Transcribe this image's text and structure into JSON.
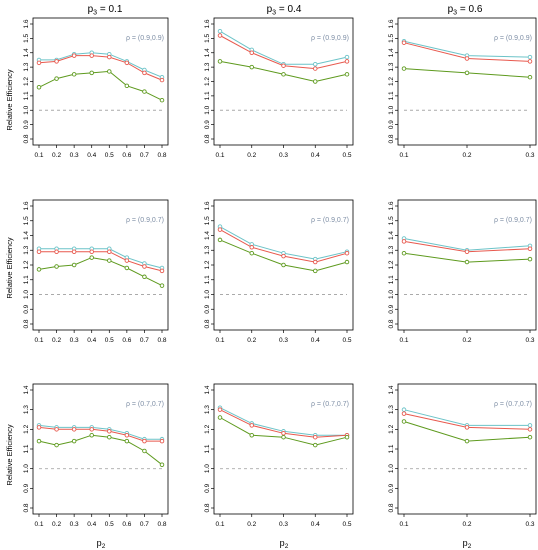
{
  "figure": {
    "column_titles": [
      {
        "base": "p",
        "sub": "3",
        "rest": " = 0.1"
      },
      {
        "base": "p",
        "sub": "3",
        "rest": " = 0.4"
      },
      {
        "base": "p",
        "sub": "3",
        "rest": " = 0.6"
      }
    ],
    "x_label": {
      "base": "p",
      "sub": "2"
    },
    "y_label": "Relative Efficiency",
    "series_colors": [
      "#6cc3c8",
      "#e8594e",
      "#5e9a1e"
    ],
    "reference_line_color": "#aaaaaa"
  },
  "chart_data": [
    {
      "type": "line",
      "row": 0,
      "col": 0,
      "annotation": "ρ = (0.9,0.9)",
      "x": [
        0.1,
        0.2,
        0.3,
        0.4,
        0.5,
        0.6,
        0.7,
        0.8
      ],
      "x_ticks": [
        "0.1",
        "0.2",
        "0.3",
        "0.4",
        "0.5",
        "0.6",
        "0.7",
        "0.8"
      ],
      "ylim": [
        0.8,
        1.6
      ],
      "y_ticks": [
        "0.8",
        "0.9",
        "1.0",
        "1.1",
        "1.2",
        "1.3",
        "1.4",
        "1.5",
        "1.6"
      ],
      "reference_line": 1.0,
      "series": [
        {
          "values": [
            1.35,
            1.35,
            1.39,
            1.4,
            1.39,
            1.34,
            1.28,
            1.23
          ]
        },
        {
          "values": [
            1.33,
            1.34,
            1.38,
            1.38,
            1.37,
            1.33,
            1.26,
            1.21
          ]
        },
        {
          "values": [
            1.16,
            1.22,
            1.25,
            1.26,
            1.27,
            1.17,
            1.13,
            1.07
          ]
        }
      ]
    },
    {
      "type": "line",
      "row": 0,
      "col": 1,
      "annotation": "ρ = (0.9,0.9)",
      "x": [
        0.1,
        0.2,
        0.3,
        0.4,
        0.5
      ],
      "x_ticks": [
        "0.1",
        "0.2",
        "0.3",
        "0.4",
        "0.5"
      ],
      "ylim": [
        0.8,
        1.6
      ],
      "y_ticks": [
        "0.8",
        "0.9",
        "1.0",
        "1.1",
        "1.2",
        "1.3",
        "1.4",
        "1.5",
        "1.6"
      ],
      "reference_line": 1.0,
      "series": [
        {
          "values": [
            1.55,
            1.42,
            1.32,
            1.32,
            1.37
          ]
        },
        {
          "values": [
            1.52,
            1.4,
            1.31,
            1.29,
            1.34
          ]
        },
        {
          "values": [
            1.34,
            1.3,
            1.25,
            1.2,
            1.25
          ]
        }
      ]
    },
    {
      "type": "line",
      "row": 0,
      "col": 2,
      "annotation": "ρ = (0.9,0.9)",
      "x": [
        0.1,
        0.2,
        0.3
      ],
      "x_ticks": [
        "0.1",
        "0.2",
        "0.3"
      ],
      "ylim": [
        0.8,
        1.6
      ],
      "y_ticks": [
        "0.8",
        "0.9",
        "1.0",
        "1.1",
        "1.2",
        "1.3",
        "1.4",
        "1.5",
        "1.6"
      ],
      "reference_line": 1.0,
      "series": [
        {
          "values": [
            1.48,
            1.38,
            1.37
          ]
        },
        {
          "values": [
            1.47,
            1.36,
            1.34
          ]
        },
        {
          "values": [
            1.29,
            1.26,
            1.23
          ]
        }
      ]
    },
    {
      "type": "line",
      "row": 1,
      "col": 0,
      "annotation": "ρ = (0.9,0.7)",
      "x": [
        0.1,
        0.2,
        0.3,
        0.4,
        0.5,
        0.6,
        0.7,
        0.8
      ],
      "x_ticks": [
        "0.1",
        "0.2",
        "0.3",
        "0.4",
        "0.5",
        "0.6",
        "0.7",
        "0.8"
      ],
      "ylim": [
        0.8,
        1.6
      ],
      "y_ticks": [
        "0.8",
        "0.9",
        "1.0",
        "1.1",
        "1.2",
        "1.3",
        "1.4",
        "1.5",
        "1.6"
      ],
      "reference_line": 1.0,
      "series": [
        {
          "values": [
            1.31,
            1.31,
            1.31,
            1.31,
            1.31,
            1.25,
            1.21,
            1.18
          ]
        },
        {
          "values": [
            1.29,
            1.29,
            1.29,
            1.29,
            1.29,
            1.23,
            1.19,
            1.16
          ]
        },
        {
          "values": [
            1.17,
            1.19,
            1.2,
            1.25,
            1.23,
            1.18,
            1.12,
            1.06
          ]
        }
      ]
    },
    {
      "type": "line",
      "row": 1,
      "col": 1,
      "annotation": "ρ = (0.9,0.7)",
      "x": [
        0.1,
        0.2,
        0.3,
        0.4,
        0.5
      ],
      "x_ticks": [
        "0.1",
        "0.2",
        "0.3",
        "0.4",
        "0.5"
      ],
      "ylim": [
        0.8,
        1.6
      ],
      "y_ticks": [
        "0.8",
        "0.9",
        "1.0",
        "1.1",
        "1.2",
        "1.3",
        "1.4",
        "1.5",
        "1.6"
      ],
      "reference_line": 1.0,
      "series": [
        {
          "values": [
            1.46,
            1.34,
            1.28,
            1.24,
            1.29
          ]
        },
        {
          "values": [
            1.44,
            1.32,
            1.26,
            1.22,
            1.28
          ]
        },
        {
          "values": [
            1.37,
            1.28,
            1.2,
            1.16,
            1.22
          ]
        }
      ]
    },
    {
      "type": "line",
      "row": 1,
      "col": 2,
      "annotation": "ρ = (0.9,0.7)",
      "x": [
        0.1,
        0.2,
        0.3
      ],
      "x_ticks": [
        "0.1",
        "0.2",
        "0.3"
      ],
      "ylim": [
        0.8,
        1.6
      ],
      "y_ticks": [
        "0.8",
        "0.9",
        "1.0",
        "1.1",
        "1.2",
        "1.3",
        "1.4",
        "1.5",
        "1.6"
      ],
      "reference_line": 1.0,
      "series": [
        {
          "values": [
            1.38,
            1.3,
            1.33
          ]
        },
        {
          "values": [
            1.36,
            1.29,
            1.31
          ]
        },
        {
          "values": [
            1.28,
            1.22,
            1.24
          ]
        }
      ]
    },
    {
      "type": "line",
      "row": 2,
      "col": 0,
      "annotation": "ρ = (0.7,0.7)",
      "x": [
        0.1,
        0.2,
        0.3,
        0.4,
        0.5,
        0.6,
        0.7,
        0.8
      ],
      "x_ticks": [
        "0.1",
        "0.2",
        "0.3",
        "0.4",
        "0.5",
        "0.6",
        "0.7",
        "0.8"
      ],
      "ylim": [
        0.8,
        1.4
      ],
      "y_ticks": [
        "0.8",
        "0.9",
        "1.0",
        "1.1",
        "1.2",
        "1.3",
        "1.4"
      ],
      "reference_line": 1.0,
      "series": [
        {
          "values": [
            1.22,
            1.21,
            1.21,
            1.21,
            1.2,
            1.18,
            1.15,
            1.15
          ]
        },
        {
          "values": [
            1.21,
            1.2,
            1.2,
            1.2,
            1.19,
            1.17,
            1.14,
            1.14
          ]
        },
        {
          "values": [
            1.14,
            1.12,
            1.14,
            1.17,
            1.16,
            1.14,
            1.09,
            1.02
          ]
        }
      ]
    },
    {
      "type": "line",
      "row": 2,
      "col": 1,
      "annotation": "ρ = (0.7,0.7)",
      "x": [
        0.1,
        0.2,
        0.3,
        0.4,
        0.5
      ],
      "x_ticks": [
        "0.1",
        "0.2",
        "0.3",
        "0.4",
        "0.5"
      ],
      "ylim": [
        0.8,
        1.4
      ],
      "y_ticks": [
        "0.8",
        "0.9",
        "1.0",
        "1.1",
        "1.2",
        "1.3",
        "1.4"
      ],
      "reference_line": 1.0,
      "series": [
        {
          "values": [
            1.31,
            1.23,
            1.19,
            1.17,
            1.17
          ]
        },
        {
          "values": [
            1.3,
            1.22,
            1.18,
            1.16,
            1.17
          ]
        },
        {
          "values": [
            1.26,
            1.17,
            1.16,
            1.12,
            1.16
          ]
        }
      ]
    },
    {
      "type": "line",
      "row": 2,
      "col": 2,
      "annotation": "ρ = (0.7,0.7)",
      "x": [
        0.1,
        0.2,
        0.3
      ],
      "x_ticks": [
        "0.1",
        "0.2",
        "0.3"
      ],
      "ylim": [
        0.8,
        1.4
      ],
      "y_ticks": [
        "0.8",
        "0.9",
        "1.0",
        "1.1",
        "1.2",
        "1.3",
        "1.4"
      ],
      "reference_line": 1.0,
      "series": [
        {
          "values": [
            1.3,
            1.22,
            1.22
          ]
        },
        {
          "values": [
            1.28,
            1.21,
            1.2
          ]
        },
        {
          "values": [
            1.24,
            1.14,
            1.16
          ]
        }
      ]
    }
  ]
}
